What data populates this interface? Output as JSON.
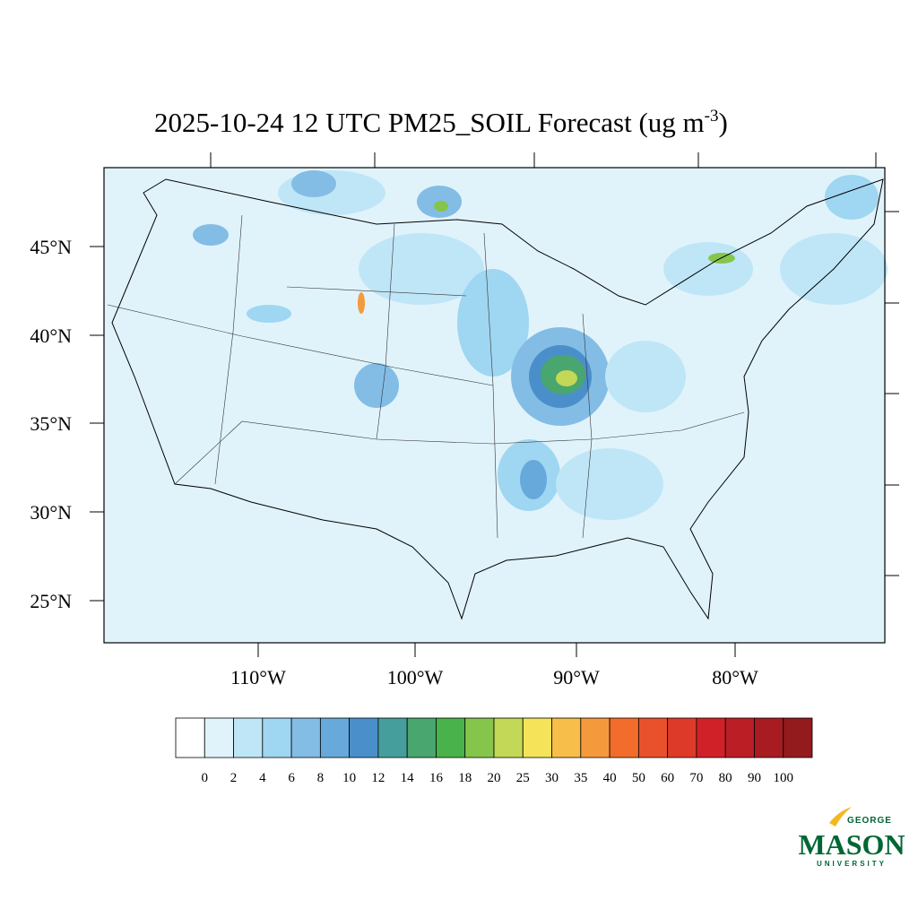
{
  "title": {
    "main": "2025-10-24 12 UTC PM25_SOIL Forecast (ug m",
    "superscript": "-3",
    "close": ")"
  },
  "lat_labels": [
    "45°N",
    "40°N",
    "35°N",
    "30°N",
    "25°N"
  ],
  "lon_labels": [
    "110°W",
    "100°W",
    "90°W",
    "80°W"
  ],
  "colorbar": {
    "levels": [
      0,
      2,
      4,
      6,
      8,
      10,
      12,
      14,
      16,
      18,
      20,
      25,
      30,
      35,
      40,
      50,
      60,
      70,
      80,
      90,
      100
    ],
    "colors": [
      "#ffffff",
      "#e0f3fb",
      "#bfe6f7",
      "#9fd6f2",
      "#83bde5",
      "#66a9da",
      "#4b8fca",
      "#459e9c",
      "#49a66e",
      "#4ab24a",
      "#86c54c",
      "#c2d856",
      "#f5e45a",
      "#f7bf4a",
      "#f59a3c",
      "#f26d2c",
      "#e9512c",
      "#dd3a2a",
      "#d02129",
      "#bc1e26",
      "#a81c21",
      "#931a1d"
    ]
  },
  "logo": {
    "top": "GEORGE",
    "main": "MASON",
    "bottom": "UNIVERSITY"
  }
}
